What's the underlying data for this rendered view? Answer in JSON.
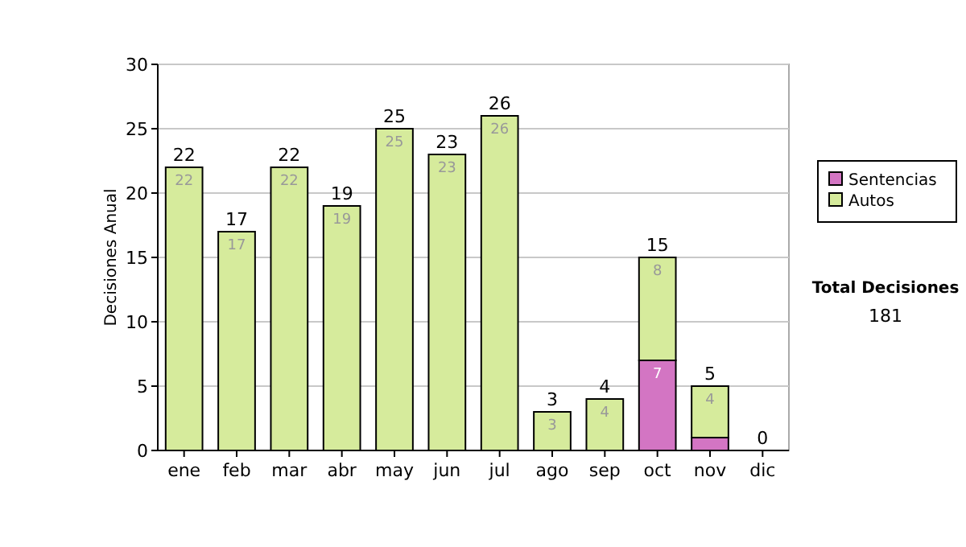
{
  "chart_data": {
    "type": "bar",
    "stacked": true,
    "ylabel": "Decisiones Anual",
    "categories": [
      "ene",
      "feb",
      "mar",
      "abr",
      "may",
      "jun",
      "jul",
      "ago",
      "sep",
      "oct",
      "nov",
      "dic"
    ],
    "series": [
      {
        "name": "Sentencias",
        "color": "#d375c3",
        "values": [
          0,
          0,
          0,
          0,
          0,
          0,
          0,
          0,
          0,
          7,
          1,
          0
        ],
        "value_labels": [
          null,
          null,
          null,
          null,
          null,
          null,
          null,
          null,
          null,
          "7",
          null,
          null
        ]
      },
      {
        "name": "Autos",
        "color": "#d6eb9c",
        "values": [
          22,
          17,
          22,
          19,
          25,
          23,
          26,
          3,
          4,
          8,
          4,
          0
        ],
        "value_labels": [
          "22",
          "17",
          "22",
          "19",
          "25",
          "23",
          "26",
          "3",
          "4",
          "8",
          "4",
          null
        ]
      }
    ],
    "totals": [
      "22",
      "17",
      "22",
      "19",
      "25",
      "23",
      "26",
      "3",
      "4",
      "15",
      "5",
      "0"
    ],
    "ylim": [
      0,
      30
    ],
    "yticks": [
      0,
      5,
      10,
      15,
      20,
      25,
      30
    ],
    "grid": "y",
    "legend": "right",
    "annotations": [
      "Total Decisiones",
      "181"
    ]
  }
}
